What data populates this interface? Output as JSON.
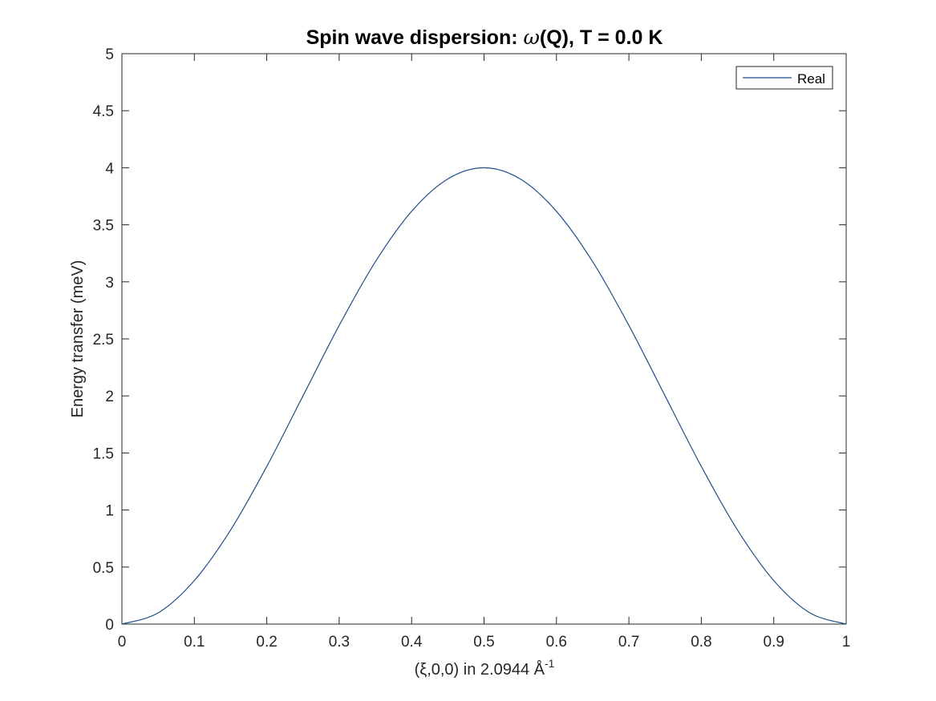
{
  "chart_data": {
    "type": "line",
    "title": "Spin wave dispersion: ω(Q), T =   0.0 K",
    "title_parts": {
      "prefix": "Spin wave dispersion: ",
      "omega": "ω",
      "suffix": "(Q), T =   0.0 K"
    },
    "xlabel": "(ξ,0,0) in 2.0944 Å^-1",
    "xlabel_parts": {
      "main": "(ξ,0,0) in 2.0944 Å",
      "sup": "-1"
    },
    "ylabel": "Energy transfer (meV)",
    "xlim": [
      0,
      1
    ],
    "ylim": [
      0,
      5
    ],
    "xticks": [
      "0",
      "0.1",
      "0.2",
      "0.3",
      "0.4",
      "0.5",
      "0.6",
      "0.7",
      "0.8",
      "0.9",
      "1"
    ],
    "yticks": [
      "0",
      "0.5",
      "1",
      "1.5",
      "2",
      "2.5",
      "3",
      "3.5",
      "4",
      "4.5",
      "5"
    ],
    "grid": false,
    "legend": {
      "position": "northeast",
      "entries": [
        "Real"
      ]
    },
    "series": [
      {
        "name": "Real",
        "color": "#1f4e8c",
        "x": [
          0,
          0.05,
          0.1,
          0.15,
          0.2,
          0.25,
          0.3,
          0.35,
          0.4,
          0.45,
          0.5,
          0.55,
          0.6,
          0.65,
          0.7,
          0.75,
          0.8,
          0.85,
          0.9,
          0.95,
          1.0
        ],
        "y": [
          0,
          0.098,
          0.382,
          0.824,
          1.382,
          2.0,
          2.618,
          3.176,
          3.618,
          3.902,
          4.0,
          3.902,
          3.618,
          3.176,
          2.618,
          2.0,
          1.382,
          0.824,
          0.382,
          0.098,
          0
        ]
      }
    ]
  }
}
